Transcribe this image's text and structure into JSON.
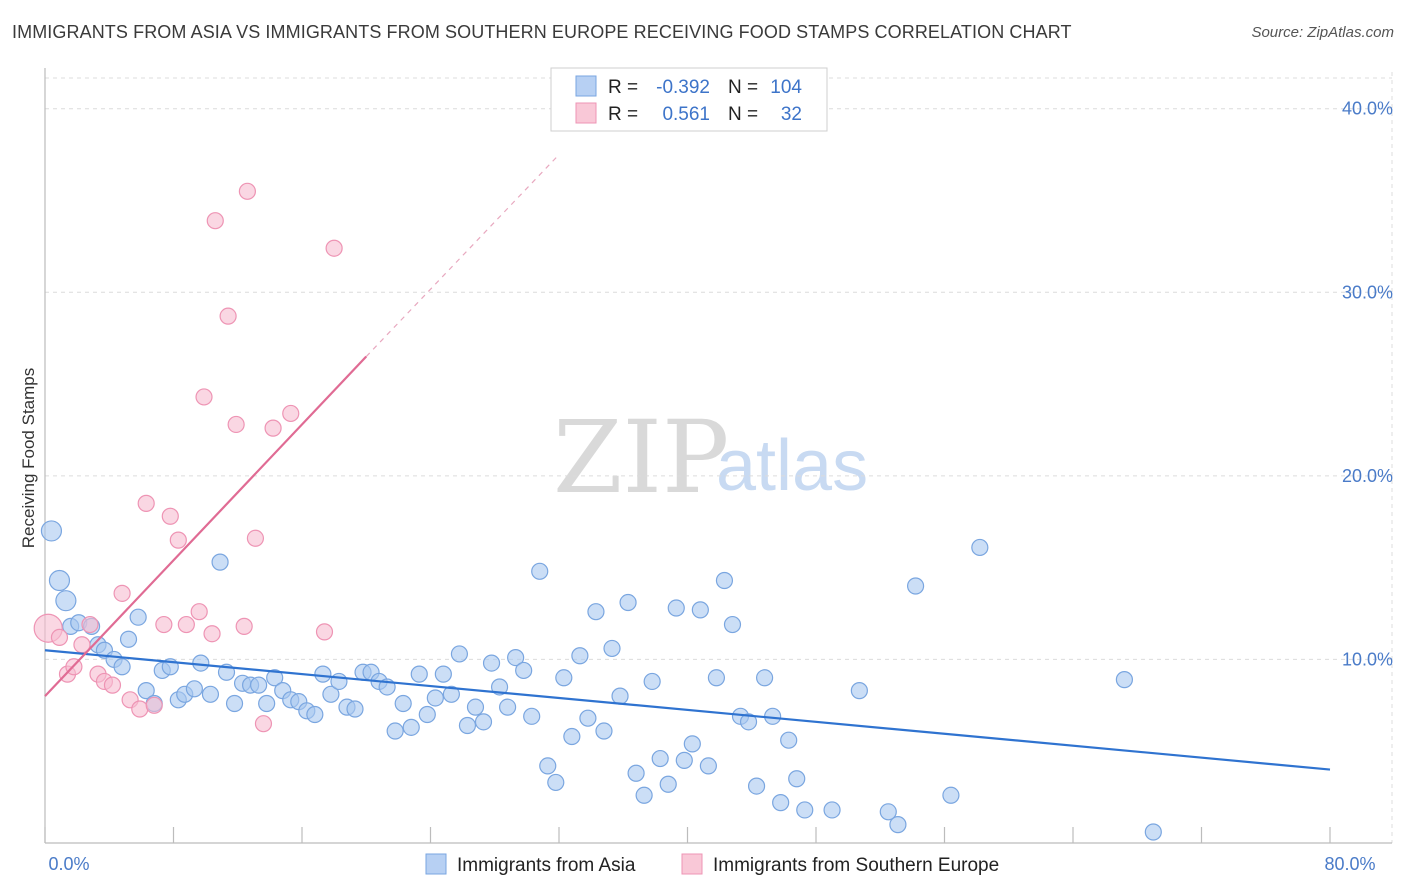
{
  "title": "IMMIGRANTS FROM ASIA VS IMMIGRANTS FROM SOUTHERN EUROPE RECEIVING FOOD STAMPS CORRELATION CHART",
  "source": "Source: ZipAtlas.com",
  "watermark": {
    "zip": "ZIP",
    "atlas": "atlas"
  },
  "legend_box": {
    "rows": [
      {
        "r_label": "R =",
        "r_value": "-0.392",
        "n_label": "N =",
        "n_value": "104"
      },
      {
        "r_label": "R =",
        "r_value": "0.561",
        "n_label": "N =",
        "n_value": "32"
      }
    ]
  },
  "chart_data": {
    "type": "scatter",
    "ylabel": "Receiving Food Stamps",
    "xlim": [
      0,
      80
    ],
    "ylim": [
      0,
      42
    ],
    "x_tick_labels": [
      {
        "v": 0,
        "label": "0.0%"
      },
      {
        "v": 80,
        "label": "80.0%"
      }
    ],
    "y_tick_labels": [
      {
        "v": 10,
        "label": "10.0%"
      },
      {
        "v": 20,
        "label": "20.0%"
      },
      {
        "v": 30,
        "label": "30.0%"
      },
      {
        "v": 40,
        "label": "40.0%"
      }
    ],
    "grid": true,
    "series": [
      {
        "name": "Immigrants from Asia",
        "color": "#a9c8f0",
        "stroke": "#7aa6e0",
        "trend_color": "#2f73d0",
        "trend": {
          "x1": 0,
          "y1": 10.5,
          "x2": 80,
          "y2": 4.0
        },
        "points": [
          [
            0.4,
            17.0
          ],
          [
            0.9,
            14.3
          ],
          [
            1.3,
            13.2
          ],
          [
            1.6,
            11.8
          ],
          [
            2.1,
            12.0
          ],
          [
            2.9,
            11.8
          ],
          [
            3.3,
            10.8
          ],
          [
            3.7,
            10.5
          ],
          [
            4.3,
            10.0
          ],
          [
            4.8,
            9.6
          ],
          [
            5.2,
            11.1
          ],
          [
            5.8,
            12.3
          ],
          [
            6.3,
            8.3
          ],
          [
            6.8,
            7.6
          ],
          [
            7.3,
            9.4
          ],
          [
            7.8,
            9.6
          ],
          [
            8.3,
            7.8
          ],
          [
            8.7,
            8.1
          ],
          [
            9.3,
            8.4
          ],
          [
            9.7,
            9.8
          ],
          [
            10.3,
            8.1
          ],
          [
            10.9,
            15.3
          ],
          [
            11.3,
            9.3
          ],
          [
            11.8,
            7.6
          ],
          [
            12.3,
            8.7
          ],
          [
            12.8,
            8.6
          ],
          [
            13.3,
            8.6
          ],
          [
            13.8,
            7.6
          ],
          [
            14.3,
            9.0
          ],
          [
            14.8,
            8.3
          ],
          [
            15.3,
            7.8
          ],
          [
            15.8,
            7.7
          ],
          [
            16.3,
            7.2
          ],
          [
            16.8,
            7.0
          ],
          [
            17.3,
            9.2
          ],
          [
            17.8,
            8.1
          ],
          [
            18.3,
            8.8
          ],
          [
            18.8,
            7.4
          ],
          [
            19.3,
            7.3
          ],
          [
            19.8,
            9.3
          ],
          [
            20.3,
            9.3
          ],
          [
            20.8,
            8.8
          ],
          [
            21.3,
            8.5
          ],
          [
            21.8,
            6.1
          ],
          [
            22.3,
            7.6
          ],
          [
            22.8,
            6.3
          ],
          [
            23.3,
            9.2
          ],
          [
            23.8,
            7.0
          ],
          [
            24.3,
            7.9
          ],
          [
            24.8,
            9.2
          ],
          [
            25.3,
            8.1
          ],
          [
            25.8,
            10.3
          ],
          [
            26.3,
            6.4
          ],
          [
            26.8,
            7.4
          ],
          [
            27.3,
            6.6
          ],
          [
            27.8,
            9.8
          ],
          [
            28.3,
            8.5
          ],
          [
            28.8,
            7.4
          ],
          [
            29.3,
            10.1
          ],
          [
            29.8,
            9.4
          ],
          [
            30.3,
            6.9
          ],
          [
            30.8,
            14.8
          ],
          [
            31.3,
            4.2
          ],
          [
            31.8,
            3.3
          ],
          [
            32.3,
            9.0
          ],
          [
            32.8,
            5.8
          ],
          [
            33.3,
            10.2
          ],
          [
            33.8,
            6.8
          ],
          [
            34.3,
            12.6
          ],
          [
            34.8,
            6.1
          ],
          [
            35.3,
            10.6
          ],
          [
            35.8,
            8.0
          ],
          [
            36.3,
            13.1
          ],
          [
            36.8,
            3.8
          ],
          [
            37.3,
            2.6
          ],
          [
            37.8,
            8.8
          ],
          [
            38.3,
            4.6
          ],
          [
            38.8,
            3.2
          ],
          [
            39.3,
            12.8
          ],
          [
            39.8,
            4.5
          ],
          [
            40.3,
            5.4
          ],
          [
            40.8,
            12.7
          ],
          [
            41.3,
            4.2
          ],
          [
            41.8,
            9.0
          ],
          [
            42.3,
            14.3
          ],
          [
            42.8,
            11.9
          ],
          [
            43.3,
            6.9
          ],
          [
            43.8,
            6.6
          ],
          [
            44.3,
            3.1
          ],
          [
            44.8,
            9.0
          ],
          [
            45.3,
            6.9
          ],
          [
            45.8,
            2.2
          ],
          [
            46.3,
            5.6
          ],
          [
            46.8,
            3.5
          ],
          [
            47.3,
            1.8
          ],
          [
            49.0,
            1.8
          ],
          [
            50.7,
            8.3
          ],
          [
            52.5,
            1.7
          ],
          [
            53.1,
            1.0
          ],
          [
            54.2,
            14.0
          ],
          [
            56.4,
            2.6
          ],
          [
            58.2,
            16.1
          ],
          [
            67.2,
            8.9
          ],
          [
            69.0,
            0.6
          ]
        ]
      },
      {
        "name": "Immigrants from Southern Europe",
        "color": "#f7bcd0",
        "stroke": "#ee94b4",
        "trend_color": "#e06b94",
        "trend": {
          "x1": 0,
          "y1": 8.0,
          "x2": 20.0,
          "y2": 26.5
        },
        "trend_dashed_to": {
          "x": 32,
          "y": 37.5
        },
        "points": [
          [
            0.2,
            11.7
          ],
          [
            0.9,
            11.2
          ],
          [
            1.4,
            9.2
          ],
          [
            1.8,
            9.6
          ],
          [
            2.3,
            10.8
          ],
          [
            2.8,
            11.9
          ],
          [
            3.3,
            9.2
          ],
          [
            3.7,
            8.8
          ],
          [
            4.2,
            8.6
          ],
          [
            4.8,
            13.6
          ],
          [
            5.3,
            7.8
          ],
          [
            5.9,
            7.3
          ],
          [
            6.3,
            18.5
          ],
          [
            6.8,
            7.5
          ],
          [
            7.4,
            11.9
          ],
          [
            7.8,
            17.8
          ],
          [
            8.3,
            16.5
          ],
          [
            8.8,
            11.9
          ],
          [
            9.6,
            12.6
          ],
          [
            9.9,
            24.3
          ],
          [
            10.4,
            11.4
          ],
          [
            10.6,
            33.9
          ],
          [
            11.4,
            28.7
          ],
          [
            11.9,
            22.8
          ],
          [
            12.4,
            11.8
          ],
          [
            12.6,
            35.5
          ],
          [
            13.1,
            16.6
          ],
          [
            13.6,
            6.5
          ],
          [
            14.2,
            22.6
          ],
          [
            15.3,
            23.4
          ],
          [
            17.4,
            11.5
          ],
          [
            18.0,
            32.4
          ]
        ]
      }
    ]
  }
}
